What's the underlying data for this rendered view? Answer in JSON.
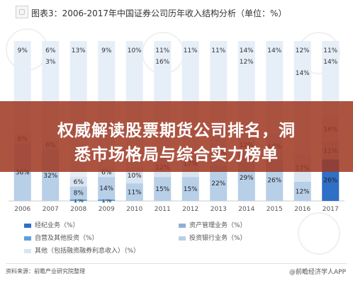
{
  "banner": {
    "line1": "权威解读股票期货公司排名，洞",
    "line2": "悉市场格局与综合实力榜单"
  },
  "footer": {
    "source": "资料来源：前瞻产业研究院整理",
    "brand": "@前瞻经济学人APP"
  },
  "colors": {
    "brokerage": "#2f6fc6",
    "asset_mgmt": "#8fb0d8",
    "proprietary": "#5aa0e0",
    "investment_banking": "#b8cfe8",
    "other": "#d9e4f1",
    "overlay": "#a03822"
  },
  "chart_data": {
    "type": "bar",
    "stacked": true,
    "percent": true,
    "title": "图表3：2006-2017年中国证券公司历年收入结构分析（单位：%）",
    "categories": [
      "2006",
      "2007",
      "2008",
      "2009",
      "2010",
      "2011",
      "2012",
      "2013",
      "2014",
      "2015",
      "2016",
      "2017"
    ],
    "ylim": [
      0,
      100
    ],
    "legend_position": "bottom",
    "series": [
      {
        "name": "经纪业务（%）",
        "color": "#2f6fc6",
        "values": [
          null,
          null,
          null,
          null,
          null,
          null,
          null,
          null,
          null,
          null,
          null,
          26
        ],
        "labels": [
          "",
          "",
          "",
          "",
          "",
          "",
          "",
          "",
          "",
          "",
          "",
          "26%"
        ]
      },
      {
        "name": "资产管理业务（%）",
        "color": "#8fb0d8",
        "values": [
          null,
          null,
          null,
          null,
          null,
          null,
          null,
          null,
          null,
          null,
          null,
          null
        ],
        "labels": [
          "",
          "",
          "",
          "",
          "",
          "",
          "",
          "",
          "",
          "",
          "",
          ""
        ]
      },
      {
        "name": "自营及其他投资（%）",
        "color": "#5aa0e0",
        "values": [
          null,
          null,
          1,
          1,
          null,
          null,
          null,
          null,
          null,
          null,
          null,
          null
        ],
        "labels": [
          "",
          "",
          "1%",
          "1%",
          "",
          "",
          "",
          "",
          "",
          "",
          "",
          ""
        ]
      },
      {
        "name": "投资银行业务（%）",
        "color": "#b8cfe8",
        "values": [
          36,
          32,
          8,
          14,
          11,
          15,
          15,
          22,
          29,
          26,
          12,
          11
        ],
        "labels": [
          "36%",
          "32%",
          "8%",
          "14%",
          "11%",
          "15%",
          "15%",
          "22%",
          "29%",
          "26%",
          "12%",
          "11%"
        ]
      },
      {
        "name": "其他（包括融资融券利息收入）（%）",
        "color": "#d9e4f1",
        "values": [
          6,
          6,
          6,
          6,
          10,
          12,
          17,
          17,
          12,
          16,
          17,
          16
        ],
        "labels": [
          "6%",
          "6%",
          "6%",
          "6%",
          "10%",
          "12%",
          "17%",
          "17%",
          "12%",
          "16%",
          "17%",
          "16%"
        ]
      }
    ],
    "top_labels": {
      "first_row": [
        "9%",
        "6%",
        "13%",
        "9%",
        "10%",
        "11%",
        "11%",
        "11%",
        "14%",
        "14%",
        "12%",
        "11%"
      ],
      "second_row": [
        "",
        "3%",
        "",
        "",
        "",
        "16%",
        "",
        "",
        "12%",
        "",
        "",
        "14%"
      ],
      "third_row": [
        "",
        "",
        "",
        "",
        "",
        "",
        "",
        "",
        "",
        "",
        "14%",
        ""
      ]
    },
    "top_label_tokens": [
      "9%",
      "6%",
      "3%",
      "13%",
      "9%",
      "10%",
      "11%",
      "16%",
      "15%",
      "12%",
      "14%",
      "5%",
      "8%",
      "3%"
    ],
    "left_labels": [
      "9%",
      "6%",
      "36%"
    ]
  },
  "legend": {
    "items": [
      "经纪业务（%）",
      "资产管理业务（%）",
      "自营及其他投资（%）",
      "投资银行业务（%）",
      "其他（包括融资融券利息收入）（%）"
    ]
  }
}
